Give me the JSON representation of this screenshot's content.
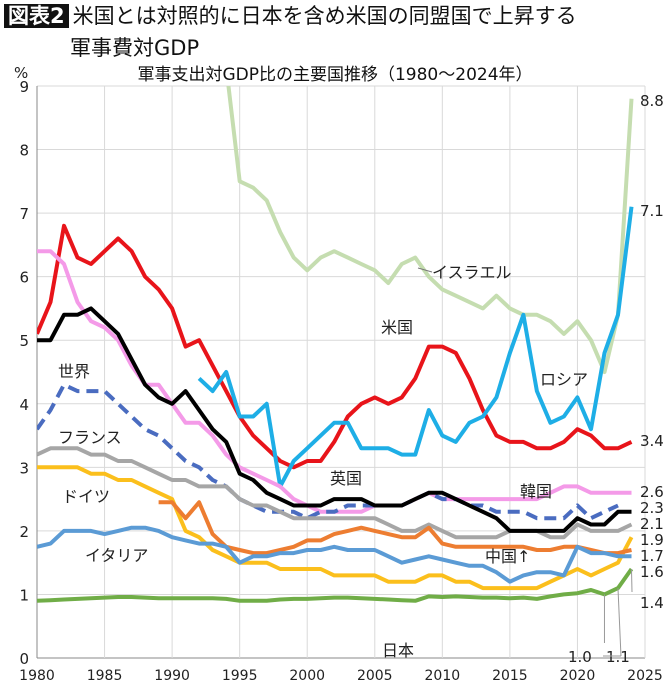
{
  "header": {
    "badge": "図表2",
    "title_line1": "米国とは対照的に日本を含め米国の同盟国で上昇する",
    "title_line2": "軍事費対GDP"
  },
  "chart_data": {
    "type": "line",
    "title": "軍事支出対GDP比の主要国推移（1980〜2024年）",
    "ylabel": "%",
    "xlim": [
      1980,
      2025
    ],
    "ylim": [
      0,
      9
    ],
    "x_ticks": [
      "1980",
      "1985",
      "1990",
      "1995",
      "2000",
      "2005",
      "2010",
      "2015",
      "2020",
      "2025"
    ],
    "y_ticks": [
      "0",
      "1",
      "2",
      "3",
      "4",
      "5",
      "6",
      "7",
      "8",
      "9"
    ],
    "grid": true,
    "series": [
      {
        "name": "イスラエル",
        "color": "#c5ddb0",
        "dashed": false,
        "start": 1994,
        "values": [
          9.3,
          7.5,
          7.4,
          7.2,
          6.7,
          6.3,
          6.1,
          6.3,
          6.4,
          6.3,
          6.2,
          6.1,
          5.9,
          6.2,
          6.3,
          6.0,
          5.8,
          5.7,
          5.6,
          5.5,
          5.7,
          5.5,
          5.4,
          5.4,
          5.3,
          5.1,
          5.3,
          5.0,
          4.5,
          5.4,
          8.8
        ]
      },
      {
        "name": "米国",
        "color": "#e8141a",
        "dashed": false,
        "start": 1980,
        "values": [
          5.1,
          5.6,
          6.8,
          6.3,
          6.2,
          6.4,
          6.6,
          6.4,
          6.0,
          5.8,
          5.5,
          4.9,
          5.0,
          4.6,
          4.2,
          3.8,
          3.5,
          3.3,
          3.1,
          3.0,
          3.1,
          3.1,
          3.4,
          3.8,
          4.0,
          4.1,
          4.0,
          4.1,
          4.4,
          4.9,
          4.9,
          4.8,
          4.4,
          3.9,
          3.5,
          3.4,
          3.4,
          3.3,
          3.3,
          3.4,
          3.6,
          3.5,
          3.3,
          3.3,
          3.4
        ]
      },
      {
        "name": "ロシア",
        "color": "#1eaee6",
        "dashed": false,
        "start": 1992,
        "values": [
          4.4,
          4.2,
          4.5,
          3.8,
          3.8,
          4.0,
          2.7,
          3.1,
          3.3,
          3.5,
          3.7,
          3.7,
          3.3,
          3.3,
          3.3,
          3.2,
          3.2,
          3.9,
          3.5,
          3.4,
          3.7,
          3.8,
          4.1,
          4.8,
          5.4,
          4.2,
          3.7,
          3.8,
          4.1,
          3.6,
          4.8,
          5.4,
          7.1
        ]
      },
      {
        "name": "韓国",
        "color": "#f49ae8",
        "dashed": false,
        "start": 1980,
        "values": [
          6.4,
          6.4,
          6.2,
          5.6,
          5.3,
          5.2,
          5.0,
          4.6,
          4.3,
          4.3,
          4.0,
          3.7,
          3.7,
          3.5,
          3.2,
          3.0,
          2.9,
          2.8,
          2.7,
          2.5,
          2.4,
          2.3,
          2.3,
          2.3,
          2.3,
          2.4,
          2.4,
          2.4,
          2.5,
          2.6,
          2.5,
          2.5,
          2.5,
          2.5,
          2.5,
          2.5,
          2.5,
          2.5,
          2.6,
          2.7,
          2.7,
          2.6,
          2.6,
          2.6,
          2.6
        ]
      },
      {
        "name": "世界",
        "color": "#4a6cc0",
        "dashed": true,
        "start": 1980,
        "values": [
          3.6,
          3.9,
          4.3,
          4.2,
          4.2,
          4.2,
          4.0,
          3.8,
          3.6,
          3.5,
          3.3,
          3.1,
          3.0,
          2.8,
          2.7,
          2.5,
          2.4,
          2.3,
          2.3,
          2.3,
          2.2,
          2.3,
          2.3,
          2.4,
          2.4,
          2.4,
          2.4,
          2.4,
          2.5,
          2.6,
          2.5,
          2.5,
          2.4,
          2.4,
          2.3,
          2.3,
          2.3,
          2.2,
          2.2,
          2.2,
          2.4,
          2.2,
          2.3,
          2.4
        ]
      },
      {
        "name": "フランス",
        "color": "#a6a6a6",
        "dashed": false,
        "start": 1980,
        "values": [
          3.2,
          3.3,
          3.3,
          3.3,
          3.2,
          3.2,
          3.1,
          3.1,
          3.0,
          2.9,
          2.8,
          2.8,
          2.7,
          2.7,
          2.7,
          2.5,
          2.4,
          2.4,
          2.3,
          2.2,
          2.2,
          2.2,
          2.2,
          2.2,
          2.2,
          2.2,
          2.1,
          2.0,
          2.0,
          2.1,
          2.0,
          1.9,
          1.9,
          1.9,
          1.9,
          2.0,
          2.0,
          2.0,
          1.9,
          1.9,
          2.1,
          2.0,
          2.0,
          2.0,
          2.1
        ]
      },
      {
        "name": "英国",
        "color": "#000000",
        "dashed": false,
        "start": 1980,
        "values": [
          5.0,
          5.0,
          5.4,
          5.4,
          5.5,
          5.3,
          5.1,
          4.7,
          4.3,
          4.1,
          4.0,
          4.2,
          3.9,
          3.6,
          3.4,
          2.9,
          2.8,
          2.6,
          2.5,
          2.4,
          2.4,
          2.4,
          2.5,
          2.5,
          2.5,
          2.4,
          2.4,
          2.4,
          2.5,
          2.6,
          2.6,
          2.5,
          2.4,
          2.3,
          2.2,
          2.0,
          2.0,
          2.0,
          2.0,
          2.0,
          2.2,
          2.1,
          2.1,
          2.3,
          2.3
        ]
      },
      {
        "name": "ドイツ",
        "color": "#fbbf1c",
        "dashed": false,
        "start": 1980,
        "values": [
          3.0,
          3.0,
          3.0,
          3.0,
          2.9,
          2.9,
          2.8,
          2.8,
          2.7,
          2.6,
          2.5,
          2.0,
          1.9,
          1.7,
          1.6,
          1.5,
          1.5,
          1.5,
          1.4,
          1.4,
          1.4,
          1.4,
          1.3,
          1.3,
          1.3,
          1.3,
          1.2,
          1.2,
          1.2,
          1.3,
          1.3,
          1.2,
          1.2,
          1.1,
          1.1,
          1.1,
          1.1,
          1.1,
          1.2,
          1.3,
          1.4,
          1.3,
          1.4,
          1.5,
          1.9
        ]
      },
      {
        "name": "中国",
        "color": "#ed7d31",
        "dashed": false,
        "start": 1989,
        "values": [
          2.45,
          2.45,
          2.2,
          2.45,
          1.95,
          1.75,
          1.7,
          1.65,
          1.65,
          1.7,
          1.75,
          1.85,
          1.85,
          1.95,
          2.0,
          2.05,
          2.0,
          1.95,
          1.9,
          1.9,
          2.05,
          1.8,
          1.75,
          1.75,
          1.75,
          1.75,
          1.75,
          1.75,
          1.7,
          1.7,
          1.75,
          1.75,
          1.7,
          1.65,
          1.65,
          1.7
        ]
      },
      {
        "name": "イタリア",
        "color": "#5b9bd5",
        "dashed": false,
        "start": 1980,
        "values": [
          1.75,
          1.8,
          2.0,
          2.0,
          2.0,
          1.95,
          2.0,
          2.05,
          2.05,
          2.0,
          1.9,
          1.85,
          1.8,
          1.8,
          1.75,
          1.5,
          1.6,
          1.6,
          1.65,
          1.65,
          1.7,
          1.7,
          1.75,
          1.7,
          1.7,
          1.7,
          1.6,
          1.5,
          1.55,
          1.6,
          1.55,
          1.5,
          1.45,
          1.45,
          1.35,
          1.2,
          1.3,
          1.35,
          1.35,
          1.3,
          1.75,
          1.65,
          1.65,
          1.6,
          1.6
        ]
      },
      {
        "name": "日本",
        "color": "#70ad47",
        "dashed": false,
        "start": 1980,
        "values": [
          0.9,
          0.91,
          0.92,
          0.93,
          0.94,
          0.95,
          0.96,
          0.96,
          0.95,
          0.94,
          0.94,
          0.94,
          0.94,
          0.94,
          0.93,
          0.9,
          0.9,
          0.9,
          0.92,
          0.93,
          0.93,
          0.94,
          0.95,
          0.95,
          0.94,
          0.93,
          0.92,
          0.91,
          0.9,
          0.97,
          0.96,
          0.97,
          0.96,
          0.95,
          0.95,
          0.94,
          0.95,
          0.93,
          0.97,
          1.0,
          1.02,
          1.07,
          1.0,
          1.1,
          1.4
        ]
      }
    ],
    "series_labels": [
      "イスラエル",
      "米国",
      "ロシア",
      "韓国",
      "世界",
      "フランス",
      "英国",
      "ドイツ",
      "中国↑",
      "イタリア",
      "日本"
    ],
    "end_labels": [
      "8.8",
      "7.1",
      "3.4",
      "2.6",
      "2.3",
      "2.1",
      "1.9",
      "1.7",
      "1.6",
      "1.4",
      "1.0",
      "1.1"
    ]
  }
}
